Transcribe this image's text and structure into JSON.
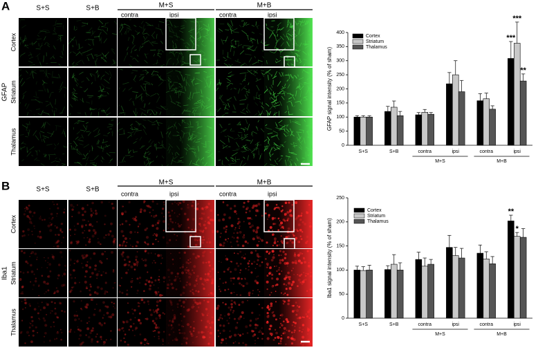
{
  "panels": [
    {
      "letter": "A",
      "marker": "GFAP",
      "columns": [
        "S+S",
        "S+B"
      ],
      "groups": [
        {
          "label": "M+S",
          "columns": [
            "contra",
            "ipsi"
          ]
        },
        {
          "label": "M+B",
          "columns": [
            "contra",
            "ipsi"
          ]
        }
      ],
      "rows": [
        "Cortex",
        "Striatum",
        "Thalamus"
      ]
    },
    {
      "letter": "B",
      "marker": "Iba1",
      "columns": [
        "S+S",
        "S+B"
      ],
      "groups": [
        {
          "label": "M+S",
          "columns": [
            "contra",
            "ipsi"
          ]
        },
        {
          "label": "M+B",
          "columns": [
            "contra",
            "ipsi"
          ]
        }
      ],
      "rows": [
        "Cortex",
        "Striatum",
        "Thalamus"
      ]
    }
  ],
  "chart_data": [
    {
      "type": "bar",
      "ylabel": "GFAP signal intensity (% of sham)",
      "categories": [
        "S+S",
        "S+B",
        "contra",
        "ipsi",
        "contra",
        "ipsi"
      ],
      "groups": [
        null,
        null,
        "M+S",
        "M+S",
        "M+B",
        "M+B"
      ],
      "series": [
        {
          "name": "Cortex",
          "color": "#000000",
          "values": [
            100,
            120,
            108,
            218,
            158,
            308
          ],
          "errors": [
            5,
            18,
            8,
            40,
            25,
            60
          ],
          "significance": [
            null,
            null,
            null,
            null,
            null,
            "***"
          ]
        },
        {
          "name": "Striatum",
          "color": "#c8c8c8",
          "values": [
            100,
            135,
            117,
            250,
            165,
            362
          ],
          "errors": [
            5,
            22,
            10,
            50,
            20,
            75
          ],
          "significance": [
            null,
            null,
            null,
            null,
            null,
            "***"
          ]
        },
        {
          "name": "Thalamus",
          "color": "#555555",
          "values": [
            100,
            105,
            110,
            190,
            128,
            228
          ],
          "errors": [
            5,
            15,
            6,
            40,
            12,
            25
          ],
          "significance": [
            null,
            null,
            null,
            null,
            null,
            "**"
          ]
        }
      ],
      "ylim": [
        0,
        400
      ],
      "yticks": [
        0,
        50,
        100,
        150,
        200,
        250,
        300,
        350,
        400
      ],
      "legend": "upper left"
    },
    {
      "type": "bar",
      "ylabel": "Iba1 signal intensity (% of sham)",
      "categories": [
        "S+S",
        "S+B",
        "contra",
        "ipsi",
        "contra",
        "ipsi"
      ],
      "groups": [
        null,
        null,
        "M+S",
        "M+S",
        "M+B",
        "M+B"
      ],
      "series": [
        {
          "name": "Cortex",
          "color": "#000000",
          "values": [
            100,
            101,
            122,
            147,
            135,
            202
          ],
          "errors": [
            8,
            8,
            15,
            25,
            17,
            12
          ],
          "significance": [
            null,
            null,
            null,
            null,
            null,
            "**"
          ]
        },
        {
          "name": "Striatum",
          "color": "#c8c8c8",
          "values": [
            99,
            112,
            108,
            130,
            123,
            170
          ],
          "errors": [
            8,
            20,
            17,
            17,
            15,
            8
          ],
          "significance": [
            null,
            null,
            null,
            null,
            null,
            "*"
          ]
        },
        {
          "name": "Thalamus",
          "color": "#555555",
          "values": [
            100,
            100,
            112,
            125,
            113,
            168
          ],
          "errors": [
            10,
            15,
            10,
            20,
            15,
            18
          ],
          "significance": [
            null,
            null,
            null,
            null,
            null,
            null
          ]
        }
      ],
      "ylim": [
        0,
        250
      ],
      "yticks": [
        0,
        50,
        100,
        150,
        200,
        250
      ],
      "legend": "upper left"
    }
  ]
}
